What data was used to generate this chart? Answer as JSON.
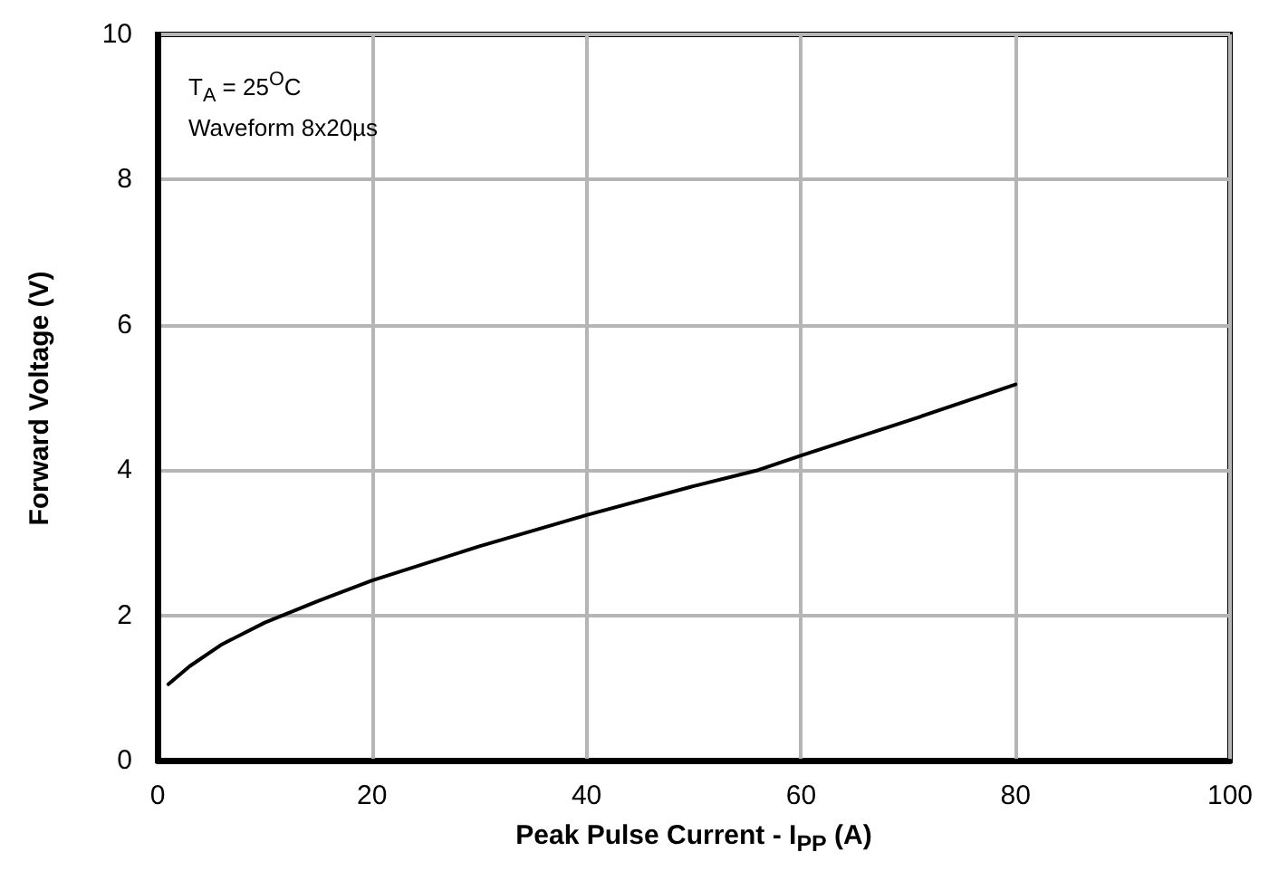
{
  "chart_data": {
    "type": "line",
    "xlabel": "Peak Pulse Current - I$_{PP}$ (A)",
    "ylabel": "Forward Voltage (V)",
    "annotations": [
      "T$_{A}$ = 25$^{O}$C",
      "Waveform 8x20µs"
    ],
    "x": [
      1,
      3,
      6,
      10,
      15,
      20,
      30,
      40,
      50,
      56,
      60,
      70,
      80
    ],
    "series": [
      {
        "color": "#000000",
        "values": [
          1.05,
          1.3,
          1.6,
          1.9,
          2.2,
          2.48,
          2.95,
          3.38,
          3.78,
          4.0,
          4.2,
          4.68,
          5.18
        ]
      }
    ],
    "xlim": [
      0,
      100
    ],
    "xticks": [
      0,
      20,
      40,
      60,
      80,
      100
    ],
    "ylim": [
      0,
      10
    ],
    "yticks": [
      0,
      2,
      4,
      6,
      8,
      10
    ],
    "grid": true,
    "marker": "none",
    "line_style": "solid"
  }
}
